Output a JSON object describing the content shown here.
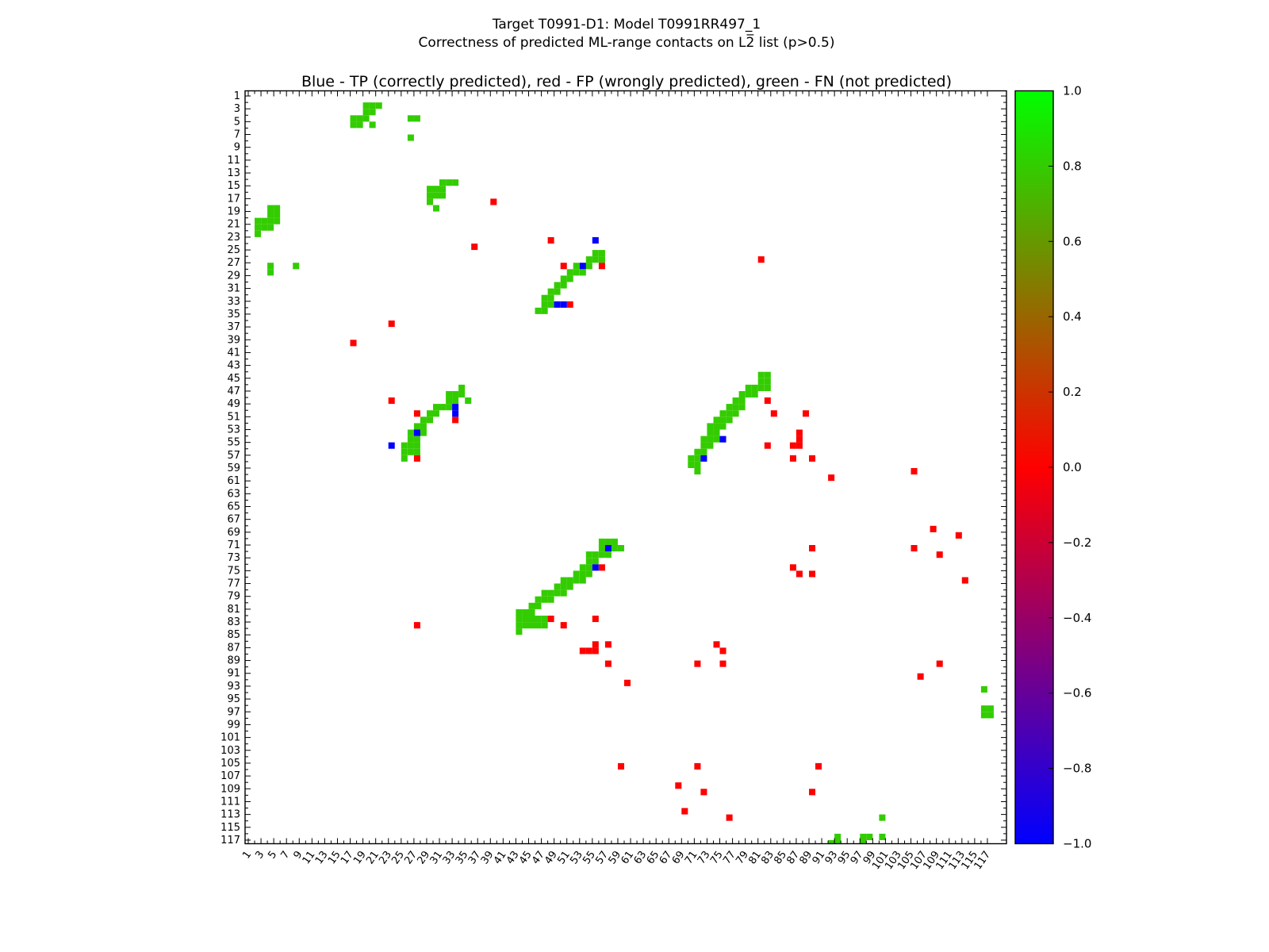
{
  "figure": {
    "suptitle_line1": "Target T0991-D1: Model T0991RR497_1",
    "suptitle_line2": "Correctness of predicted ML-range contacts on L2̅ list (p>0.5)"
  },
  "chart_data": {
    "type": "heatmap",
    "title": "Blue - TP (correctly predicted), red - FP (wrongly predicted), green - FN (not predicted)",
    "xlabel": "",
    "ylabel": "",
    "axis_range": {
      "min": 1,
      "max": 117,
      "label_step": 2,
      "minor_step": 1
    },
    "x_tick_labels": [
      1,
      3,
      5,
      7,
      9,
      11,
      13,
      15,
      17,
      19,
      21,
      23,
      25,
      27,
      29,
      31,
      33,
      35,
      37,
      39,
      41,
      43,
      45,
      47,
      49,
      51,
      53,
      55,
      57,
      59,
      61,
      63,
      65,
      67,
      69,
      71,
      73,
      75,
      77,
      79,
      81,
      83,
      85,
      87,
      89,
      91,
      93,
      95,
      97,
      99,
      101,
      103,
      105,
      107,
      109,
      111,
      113,
      115,
      117
    ],
    "y_tick_labels": [
      1,
      3,
      5,
      7,
      9,
      11,
      13,
      15,
      17,
      19,
      21,
      23,
      25,
      27,
      29,
      31,
      33,
      35,
      37,
      39,
      41,
      43,
      45,
      47,
      49,
      51,
      53,
      55,
      57,
      59,
      61,
      63,
      65,
      67,
      69,
      71,
      73,
      75,
      77,
      79,
      81,
      83,
      85,
      87,
      89,
      91,
      93,
      95,
      97,
      99,
      101,
      103,
      105,
      107,
      109,
      111,
      113,
      115,
      117
    ],
    "grid": false,
    "legend_position": "in-title",
    "colorbar": {
      "ticks": [
        "1.0",
        "0.8",
        "0.6",
        "0.4",
        "0.2",
        "0.0",
        "−0.2",
        "−0.4",
        "−0.6",
        "−0.8",
        "−1.0"
      ],
      "vmin": -1.0,
      "vmax": 1.0,
      "top_color": "#00ff00",
      "mid_color": "#ff0000",
      "bottom_color": "#0000ff"
    },
    "series": [
      {
        "name": "FN (not predicted)",
        "value": "green",
        "color": "#33cc00",
        "points": [
          [
            19,
            2
          ],
          [
            20,
            2
          ],
          [
            21,
            2
          ],
          [
            19,
            3
          ],
          [
            20,
            3
          ],
          [
            17,
            4
          ],
          [
            18,
            4
          ],
          [
            19,
            4
          ],
          [
            17,
            5
          ],
          [
            18,
            5
          ],
          [
            20,
            5
          ],
          [
            26,
            4
          ],
          [
            27,
            4
          ],
          [
            26,
            7
          ],
          [
            31,
            14
          ],
          [
            32,
            14
          ],
          [
            33,
            14
          ],
          [
            29,
            15
          ],
          [
            30,
            15
          ],
          [
            31,
            15
          ],
          [
            29,
            16
          ],
          [
            30,
            16
          ],
          [
            31,
            16
          ],
          [
            29,
            17
          ],
          [
            30,
            18
          ],
          [
            4,
            18
          ],
          [
            5,
            18
          ],
          [
            4,
            19
          ],
          [
            5,
            19
          ],
          [
            2,
            20
          ],
          [
            3,
            20
          ],
          [
            4,
            20
          ],
          [
            5,
            20
          ],
          [
            2,
            21
          ],
          [
            3,
            21
          ],
          [
            4,
            21
          ],
          [
            2,
            22
          ],
          [
            4,
            27
          ],
          [
            4,
            28
          ],
          [
            8,
            27
          ],
          [
            55,
            25
          ],
          [
            56,
            25
          ],
          [
            54,
            26
          ],
          [
            55,
            26
          ],
          [
            56,
            26
          ],
          [
            52,
            27
          ],
          [
            54,
            27
          ],
          [
            51,
            28
          ],
          [
            52,
            28
          ],
          [
            53,
            28
          ],
          [
            50,
            29
          ],
          [
            51,
            29
          ],
          [
            49,
            30
          ],
          [
            50,
            30
          ],
          [
            48,
            31
          ],
          [
            49,
            31
          ],
          [
            47,
            32
          ],
          [
            48,
            32
          ],
          [
            47,
            33
          ],
          [
            48,
            33
          ],
          [
            46,
            34
          ],
          [
            47,
            34
          ],
          [
            34,
            46
          ],
          [
            32,
            47
          ],
          [
            33,
            47
          ],
          [
            34,
            47
          ],
          [
            32,
            48
          ],
          [
            33,
            48
          ],
          [
            35,
            48
          ],
          [
            30,
            49
          ],
          [
            31,
            49
          ],
          [
            32,
            49
          ],
          [
            29,
            50
          ],
          [
            30,
            50
          ],
          [
            28,
            51
          ],
          [
            29,
            51
          ],
          [
            27,
            52
          ],
          [
            28,
            52
          ],
          [
            26,
            53
          ],
          [
            28,
            53
          ],
          [
            26,
            54
          ],
          [
            27,
            54
          ],
          [
            25,
            55
          ],
          [
            26,
            55
          ],
          [
            27,
            55
          ],
          [
            25,
            56
          ],
          [
            26,
            56
          ],
          [
            27,
            56
          ],
          [
            25,
            57
          ],
          [
            81,
            44
          ],
          [
            82,
            44
          ],
          [
            81,
            45
          ],
          [
            82,
            45
          ],
          [
            79,
            46
          ],
          [
            80,
            46
          ],
          [
            81,
            46
          ],
          [
            82,
            46
          ],
          [
            78,
            47
          ],
          [
            79,
            47
          ],
          [
            80,
            47
          ],
          [
            77,
            48
          ],
          [
            78,
            48
          ],
          [
            76,
            49
          ],
          [
            77,
            49
          ],
          [
            78,
            49
          ],
          [
            75,
            50
          ],
          [
            76,
            50
          ],
          [
            77,
            50
          ],
          [
            74,
            51
          ],
          [
            75,
            51
          ],
          [
            76,
            51
          ],
          [
            73,
            52
          ],
          [
            74,
            52
          ],
          [
            75,
            52
          ],
          [
            73,
            53
          ],
          [
            74,
            53
          ],
          [
            72,
            54
          ],
          [
            73,
            54
          ],
          [
            74,
            54
          ],
          [
            72,
            55
          ],
          [
            73,
            55
          ],
          [
            71,
            56
          ],
          [
            72,
            56
          ],
          [
            70,
            57
          ],
          [
            71,
            57
          ],
          [
            70,
            58
          ],
          [
            71,
            58
          ],
          [
            71,
            59
          ],
          [
            56,
            70
          ],
          [
            57,
            70
          ],
          [
            58,
            70
          ],
          [
            56,
            71
          ],
          [
            58,
            71
          ],
          [
            59,
            71
          ],
          [
            54,
            72
          ],
          [
            55,
            72
          ],
          [
            56,
            72
          ],
          [
            57,
            72
          ],
          [
            54,
            73
          ],
          [
            55,
            73
          ],
          [
            53,
            74
          ],
          [
            54,
            74
          ],
          [
            52,
            75
          ],
          [
            53,
            75
          ],
          [
            54,
            75
          ],
          [
            50,
            76
          ],
          [
            51,
            76
          ],
          [
            52,
            76
          ],
          [
            53,
            76
          ],
          [
            49,
            77
          ],
          [
            50,
            77
          ],
          [
            51,
            77
          ],
          [
            47,
            78
          ],
          [
            48,
            78
          ],
          [
            49,
            78
          ],
          [
            50,
            78
          ],
          [
            46,
            79
          ],
          [
            47,
            79
          ],
          [
            48,
            79
          ],
          [
            45,
            80
          ],
          [
            46,
            80
          ],
          [
            43,
            81
          ],
          [
            44,
            81
          ],
          [
            45,
            81
          ],
          [
            43,
            82
          ],
          [
            44,
            82
          ],
          [
            45,
            82
          ],
          [
            46,
            82
          ],
          [
            47,
            82
          ],
          [
            43,
            83
          ],
          [
            44,
            83
          ],
          [
            45,
            83
          ],
          [
            46,
            83
          ],
          [
            47,
            83
          ],
          [
            43,
            84
          ],
          [
            116,
            93
          ],
          [
            116,
            96
          ],
          [
            117,
            96
          ],
          [
            116,
            97
          ],
          [
            117,
            97
          ],
          [
            92,
            117
          ],
          [
            93,
            116
          ],
          [
            93,
            117
          ],
          [
            97,
            116
          ],
          [
            97,
            117
          ],
          [
            98,
            116
          ],
          [
            100,
            113
          ],
          [
            100,
            116
          ]
        ]
      },
      {
        "name": "FP (wrongly predicted)",
        "value": "red",
        "color": "#ff0000",
        "points": [
          [
            39,
            17
          ],
          [
            48,
            23
          ],
          [
            36,
            24
          ],
          [
            81,
            26
          ],
          [
            50,
            27
          ],
          [
            56,
            27
          ],
          [
            51,
            33
          ],
          [
            23,
            36
          ],
          [
            17,
            39
          ],
          [
            23,
            48
          ],
          [
            82,
            48
          ],
          [
            27,
            50
          ],
          [
            83,
            50
          ],
          [
            88,
            50
          ],
          [
            33,
            51
          ],
          [
            87,
            53
          ],
          [
            87,
            54
          ],
          [
            82,
            55
          ],
          [
            86,
            55
          ],
          [
            87,
            55
          ],
          [
            27,
            57
          ],
          [
            86,
            57
          ],
          [
            89,
            57
          ],
          [
            105,
            59
          ],
          [
            92,
            60
          ],
          [
            108,
            68
          ],
          [
            112,
            69
          ],
          [
            89,
            71
          ],
          [
            105,
            71
          ],
          [
            109,
            72
          ],
          [
            56,
            74
          ],
          [
            86,
            74
          ],
          [
            87,
            75
          ],
          [
            89,
            75
          ],
          [
            113,
            76
          ],
          [
            48,
            82
          ],
          [
            55,
            82
          ],
          [
            27,
            83
          ],
          [
            50,
            83
          ],
          [
            53,
            87
          ],
          [
            54,
            87
          ],
          [
            55,
            86
          ],
          [
            55,
            87
          ],
          [
            57,
            86
          ],
          [
            74,
            86
          ],
          [
            75,
            87
          ],
          [
            57,
            89
          ],
          [
            71,
            89
          ],
          [
            75,
            89
          ],
          [
            109,
            89
          ],
          [
            106,
            91
          ],
          [
            60,
            92
          ],
          [
            59,
            105
          ],
          [
            71,
            105
          ],
          [
            90,
            105
          ],
          [
            68,
            108
          ],
          [
            72,
            109
          ],
          [
            89,
            109
          ],
          [
            69,
            112
          ],
          [
            76,
            113
          ]
        ]
      },
      {
        "name": "TP (correctly predicted)",
        "value": "blue",
        "color": "#0000ff",
        "points": [
          [
            55,
            23
          ],
          [
            53,
            27
          ],
          [
            49,
            33
          ],
          [
            50,
            33
          ],
          [
            33,
            49
          ],
          [
            33,
            50
          ],
          [
            27,
            53
          ],
          [
            23,
            55
          ],
          [
            75,
            54
          ],
          [
            72,
            57
          ],
          [
            57,
            71
          ],
          [
            55,
            74
          ]
        ]
      }
    ]
  }
}
